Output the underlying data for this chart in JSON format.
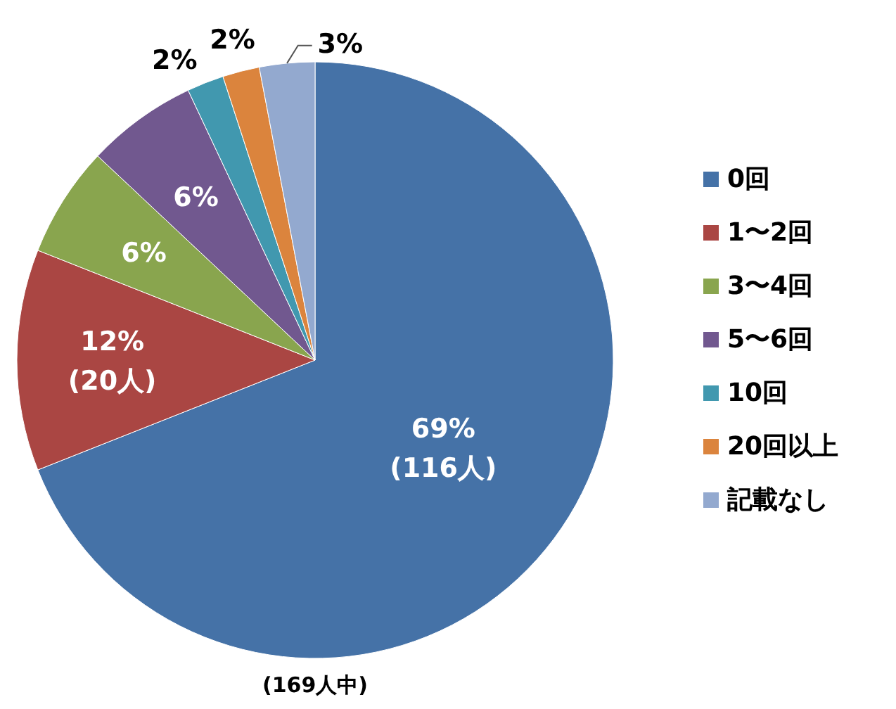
{
  "chart_data": {
    "type": "pie",
    "categories": [
      "0回",
      "1〜2回",
      "3〜4回",
      "5〜6回",
      "10回",
      "20回以上",
      "記載なし"
    ],
    "values": [
      69,
      12,
      6,
      6,
      2,
      2,
      3
    ],
    "value_labels": [
      "69%\n(116人)",
      "12%\n(20人)",
      "6%",
      "6%",
      "2%",
      "2%",
      "3%"
    ],
    "colors": [
      "#4572a7",
      "#aa4643",
      "#89a54e",
      "#71588f",
      "#4198af",
      "#db843d",
      "#93a9cf"
    ],
    "legend": "right",
    "annotations": [
      "(169人中)"
    ]
  }
}
